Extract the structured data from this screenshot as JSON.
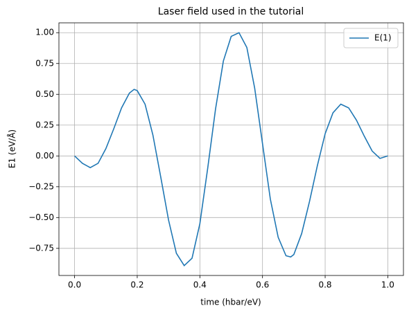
{
  "chart_data": {
    "type": "line",
    "title": "Laser field used in the tutorial",
    "x_label": "time (hbar/eV)",
    "y_label": "E1 (eV/Å)",
    "x": [
      0,
      0.025,
      0.05,
      0.075,
      0.1,
      0.125,
      0.15,
      0.175,
      0.19,
      0.2,
      0.225,
      0.25,
      0.275,
      0.3,
      0.325,
      0.35,
      0.375,
      0.4,
      0.425,
      0.45,
      0.475,
      0.5,
      0.525,
      0.55,
      0.575,
      0.6,
      0.625,
      0.65,
      0.675,
      0.69,
      0.7,
      0.725,
      0.75,
      0.775,
      0.8,
      0.825,
      0.85,
      0.875,
      0.9,
      0.925,
      0.95,
      0.975,
      1.0
    ],
    "series": [
      {
        "name": "E(1)",
        "color": "#1f77b4",
        "values": [
          0,
          -0.06,
          -0.095,
          -0.06,
          0.06,
          0.22,
          0.39,
          0.51,
          0.54,
          0.53,
          0.42,
          0.17,
          -0.17,
          -0.52,
          -0.79,
          -0.89,
          -0.83,
          -0.55,
          -0.1,
          0.38,
          0.77,
          0.97,
          1.0,
          0.88,
          0.55,
          0.1,
          -0.35,
          -0.66,
          -0.81,
          -0.82,
          -0.8,
          -0.63,
          -0.37,
          -0.08,
          0.18,
          0.35,
          0.42,
          0.39,
          0.29,
          0.16,
          0.04,
          -0.02,
          0.0
        ]
      }
    ],
    "xlim": [
      -0.05,
      1.05
    ],
    "ylim": [
      -0.97,
      1.08
    ],
    "xticks": [
      {
        "value": 0,
        "label": "0.0"
      },
      {
        "value": 0.2,
        "label": "0.2"
      },
      {
        "value": 0.4,
        "label": "0.4"
      },
      {
        "value": 0.6,
        "label": "0.6"
      },
      {
        "value": 0.8,
        "label": "0.8"
      },
      {
        "value": 1,
        "label": "1.0"
      }
    ],
    "yticks": [
      {
        "value": -0.75,
        "label": "−0.75"
      },
      {
        "value": -0.5,
        "label": "−0.50"
      },
      {
        "value": -0.25,
        "label": "−0.25"
      },
      {
        "value": 0,
        "label": "0.00"
      },
      {
        "value": 0.25,
        "label": "0.25"
      },
      {
        "value": 0.5,
        "label": "0.50"
      },
      {
        "value": 0.75,
        "label": "0.75"
      },
      {
        "value": 1,
        "label": "1.00"
      }
    ],
    "grid": true,
    "legend": "upper right"
  }
}
